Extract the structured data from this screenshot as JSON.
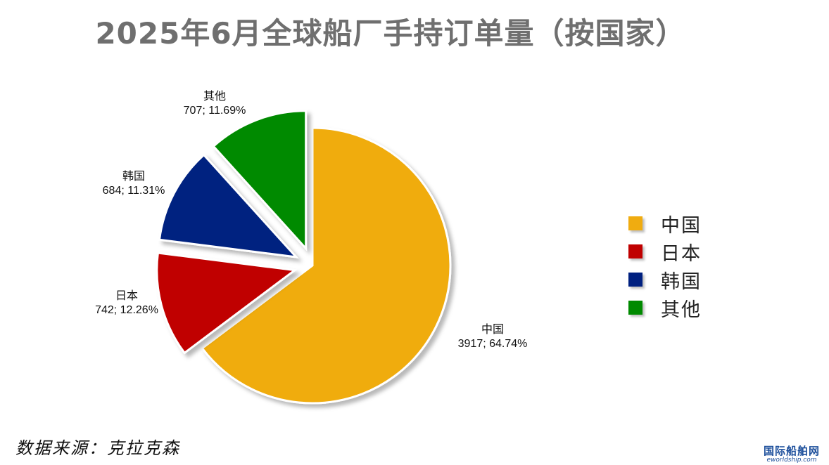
{
  "chart_data": {
    "type": "pie",
    "title": "2025年6月全球船厂手持订单量（按国家）",
    "slices": [
      {
        "name": "中国",
        "value": 3917,
        "percent": "64.74%",
        "label_value": "3917; 64.74%",
        "color": "#f0ac10"
      },
      {
        "name": "日本",
        "value": 742,
        "percent": "12.26%",
        "label_value": "742; 12.26%",
        "color": "#c00000"
      },
      {
        "name": "韩国",
        "value": 684,
        "percent": "11.31%",
        "label_value": "684; 11.31%",
        "color": "#002080"
      },
      {
        "name": "其他",
        "value": 707,
        "percent": "11.69%",
        "label_value": "707; 11.69%",
        "color": "#008a00"
      }
    ],
    "legend_position": "right",
    "exploded": true
  },
  "source_note": "数据来源：克拉克森",
  "watermark": {
    "cn": "国际船舶网",
    "en": "eworldship.com"
  }
}
